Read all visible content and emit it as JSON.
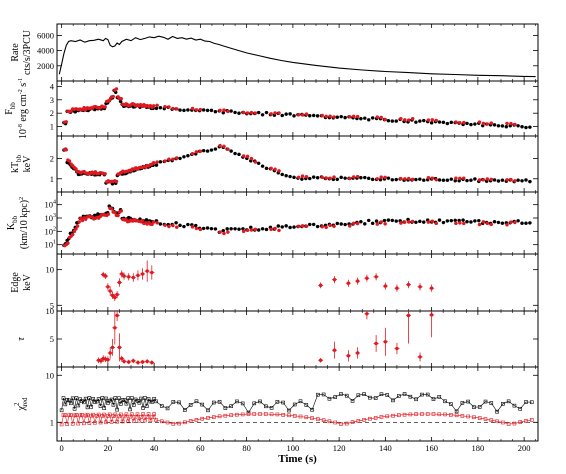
{
  "chart_data": {
    "type": "scatter",
    "colors": {
      "black": "#000000",
      "red": "#e0191f"
    },
    "x_axis": {
      "label": "Time (s)",
      "range": [
        -2,
        206
      ],
      "ticks": [
        0,
        20,
        40,
        60,
        80,
        100,
        120,
        140,
        160,
        180,
        200
      ]
    },
    "panels": [
      {
        "id": "rate",
        "ylabel": [
          "Rate",
          "cts/s/3PCU"
        ],
        "ylim": [
          0,
          7500
        ],
        "yscale": "linear",
        "yticks": [
          {
            "v": 2000,
            "label": "2000"
          },
          {
            "v": 4000,
            "label": "4000"
          },
          {
            "v": 6000,
            "label": "6000"
          }
        ],
        "series": [
          {
            "color": "black",
            "style": "line",
            "x": [
              -1,
              0,
              1,
              2,
              3,
              4,
              6,
              8,
              10,
              12,
              14,
              16,
              18,
              19,
              20,
              21,
              22,
              23,
              24,
              25,
              26,
              28,
              30,
              32,
              34,
              36,
              38,
              40,
              42,
              44,
              46,
              48,
              50,
              52,
              54,
              56,
              58,
              60,
              62,
              64,
              66,
              68,
              70,
              75,
              80,
              85,
              90,
              95,
              100,
              110,
              120,
              130,
              140,
              150,
              160,
              170,
              180,
              190,
              200,
              205
            ],
            "y": [
              900,
              2200,
              3600,
              4700,
              5200,
              5300,
              5200,
              5400,
              5100,
              5300,
              5350,
              5500,
              5300,
              5600,
              5450,
              4700,
              4500,
              4600,
              5000,
              4800,
              5200,
              5500,
              5300,
              5700,
              5450,
              5600,
              5800,
              5700,
              5900,
              5750,
              5500,
              5850,
              5600,
              5700,
              5500,
              5650,
              5400,
              5500,
              5250,
              5200,
              4950,
              4800,
              4600,
              4150,
              3700,
              3350,
              3000,
              2700,
              2450,
              2050,
              1700,
              1450,
              1250,
              1100,
              950,
              850,
              750,
              700,
              600,
              580
            ]
          }
        ]
      },
      {
        "id": "fbb",
        "ylabel": [
          "F",
          "bb",
          "10",
          "-8",
          " erg cm",
          "-2",
          " s",
          "-1"
        ],
        "ylim": [
          0.3,
          4.4
        ],
        "yscale": "linear",
        "yticks": [
          {
            "v": 1,
            "label": "1"
          },
          {
            "v": 2,
            "label": "2"
          },
          {
            "v": 3,
            "label": "3"
          },
          {
            "v": 4,
            "label": "4"
          }
        ],
        "series": [
          {
            "color": "black",
            "style": "points",
            "x": [],
            "y": []
          },
          {
            "color": "red",
            "style": "points",
            "x": [],
            "y": []
          }
        ]
      },
      {
        "id": "ktbb",
        "ylabel": [
          "kT",
          "bb",
          "keV"
        ],
        "ylim": [
          0.35,
          3.1
        ],
        "yscale": "linear",
        "yticks": [
          {
            "v": 1,
            "label": "1"
          },
          {
            "v": 2,
            "label": "2"
          }
        ],
        "series": [
          {
            "color": "black",
            "style": "points",
            "x": [],
            "y": []
          },
          {
            "color": "red",
            "style": "points",
            "x": [],
            "y": []
          }
        ]
      },
      {
        "id": "kbb",
        "ylabel": [
          "K",
          "bb",
          "(km/10 kpc)",
          "2"
        ],
        "ylim": [
          0.3,
          4.95
        ],
        "yscale": "log10",
        "yticks": [
          {
            "v": 1,
            "label": "10"
          },
          {
            "v": 2,
            "label": "10"
          },
          {
            "v": 3,
            "label": "10"
          },
          {
            "v": 4,
            "label": "10"
          }
        ],
        "ytick_exponents": [
          "1",
          "2",
          "3",
          "4"
        ],
        "series": [
          {
            "color": "black",
            "style": "points",
            "x": [],
            "y": []
          },
          {
            "color": "red",
            "style": "points",
            "x": [],
            "y": []
          }
        ]
      },
      {
        "id": "edge",
        "ylabel": [
          "Edge",
          "keV"
        ],
        "ylim": [
          4.2,
          12.2
        ],
        "yscale": "linear",
        "yticks": [
          {
            "v": 5,
            "label": "5"
          },
          {
            "v": 10,
            "label": "10"
          }
        ],
        "series": [
          {
            "color": "red",
            "style": "points_err",
            "x": [
              18,
              19,
              20,
              21,
              22,
              23,
              24,
              25,
              26,
              27,
              29,
              31,
              33,
              35,
              37,
              39,
              112,
              118,
              124,
              128,
              132,
              136,
              140,
              145,
              150,
              155,
              160
            ],
            "y": [
              9.3,
              9.1,
              7.6,
              7.0,
              6.4,
              6.1,
              6.5,
              8.2,
              9.4,
              9.1,
              9.0,
              8.9,
              9.2,
              9.4,
              9.8,
              9.6,
              7.8,
              8.6,
              8.1,
              8.4,
              8.8,
              9.0,
              7.7,
              7.4,
              7.9,
              7.6,
              7.4
            ],
            "err": [
              0.4,
              0.4,
              0.5,
              0.6,
              0.5,
              0.5,
              0.5,
              0.6,
              0.5,
              0.5,
              0.5,
              0.6,
              0.7,
              0.8,
              1.5,
              1.0,
              0.4,
              0.5,
              0.5,
              0.5,
              0.5,
              0.5,
              0.5,
              0.5,
              0.5,
              0.5,
              0.5
            ]
          }
        ]
      },
      {
        "id": "tau",
        "ylabel": [
          "τ"
        ],
        "ylim": [
          0,
          10
        ],
        "yscale": "linear",
        "yticks": [
          {
            "v": 5,
            "label": "5"
          },
          {
            "v": 10,
            "label": "10"
          }
        ],
        "series": [
          {
            "color": "red",
            "style": "points_err",
            "x": [
              16,
              17,
              18,
              19,
              20,
              21,
              22,
              23,
              24,
              25,
              26,
              27,
              29,
              31,
              33,
              35,
              37,
              39,
              112,
              118,
              124,
              128,
              132,
              136,
              140,
              145,
              150,
              155,
              160
            ],
            "y": [
              1.2,
              1.1,
              1.5,
              1.4,
              1.3,
              2.5,
              3.5,
              7.0,
              9.2,
              3.5,
              1.5,
              1.0,
              0.9,
              1.1,
              0.8,
              0.9,
              1.0,
              0.8,
              1.2,
              3.0,
              2.0,
              2.5,
              9.5,
              4.2,
              4.5,
              3.3,
              9.2,
              1.8,
              9.3
            ],
            "err": [
              0.5,
              0.5,
              0.6,
              0.5,
              0.6,
              1.0,
              1.5,
              3.0,
              1.0,
              2.5,
              0.5,
              0.4,
              0.4,
              0.4,
              0.4,
              0.4,
              0.4,
              0.4,
              0.4,
              1.5,
              1.0,
              1.0,
              1.0,
              1.5,
              2.5,
              1.0,
              5.0,
              0.8,
              4.0
            ]
          }
        ]
      },
      {
        "id": "chi2",
        "ylabel": [
          "χ",
          "2",
          "red"
        ],
        "ylim": [
          0.4,
          15
        ],
        "yscale": "log10",
        "yticks": [
          {
            "v": 1,
            "label": "1"
          },
          {
            "v": 10,
            "label": "10"
          }
        ],
        "reference_line": 1,
        "series": [
          {
            "color": "black",
            "style": "steps",
            "x": [],
            "y": []
          },
          {
            "color": "red",
            "style": "steps",
            "x": [],
            "y": []
          }
        ]
      }
    ]
  }
}
